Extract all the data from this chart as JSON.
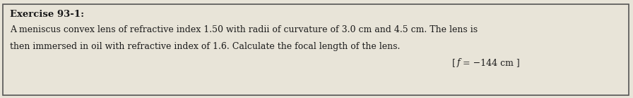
{
  "title": "Exercise 93-1:",
  "line1": "A meniscus convex lens of refractive index 1.50 with radii of curvature of 3.0 cm and 4.5 cm. The lens is",
  "line2": "then immersed in oil with refractive index of 1.6. Calculate the focal length of the lens.",
  "answer_bracket_open": "[",
  "answer_f": "f",
  "answer_rest": "= −144 cm ]",
  "bg_color": "#e8e4d8",
  "border_color": "#555555",
  "text_color": "#1a1a1a",
  "title_fontsize": 9.5,
  "body_fontsize": 9.0,
  "answer_fontsize": 9.0
}
